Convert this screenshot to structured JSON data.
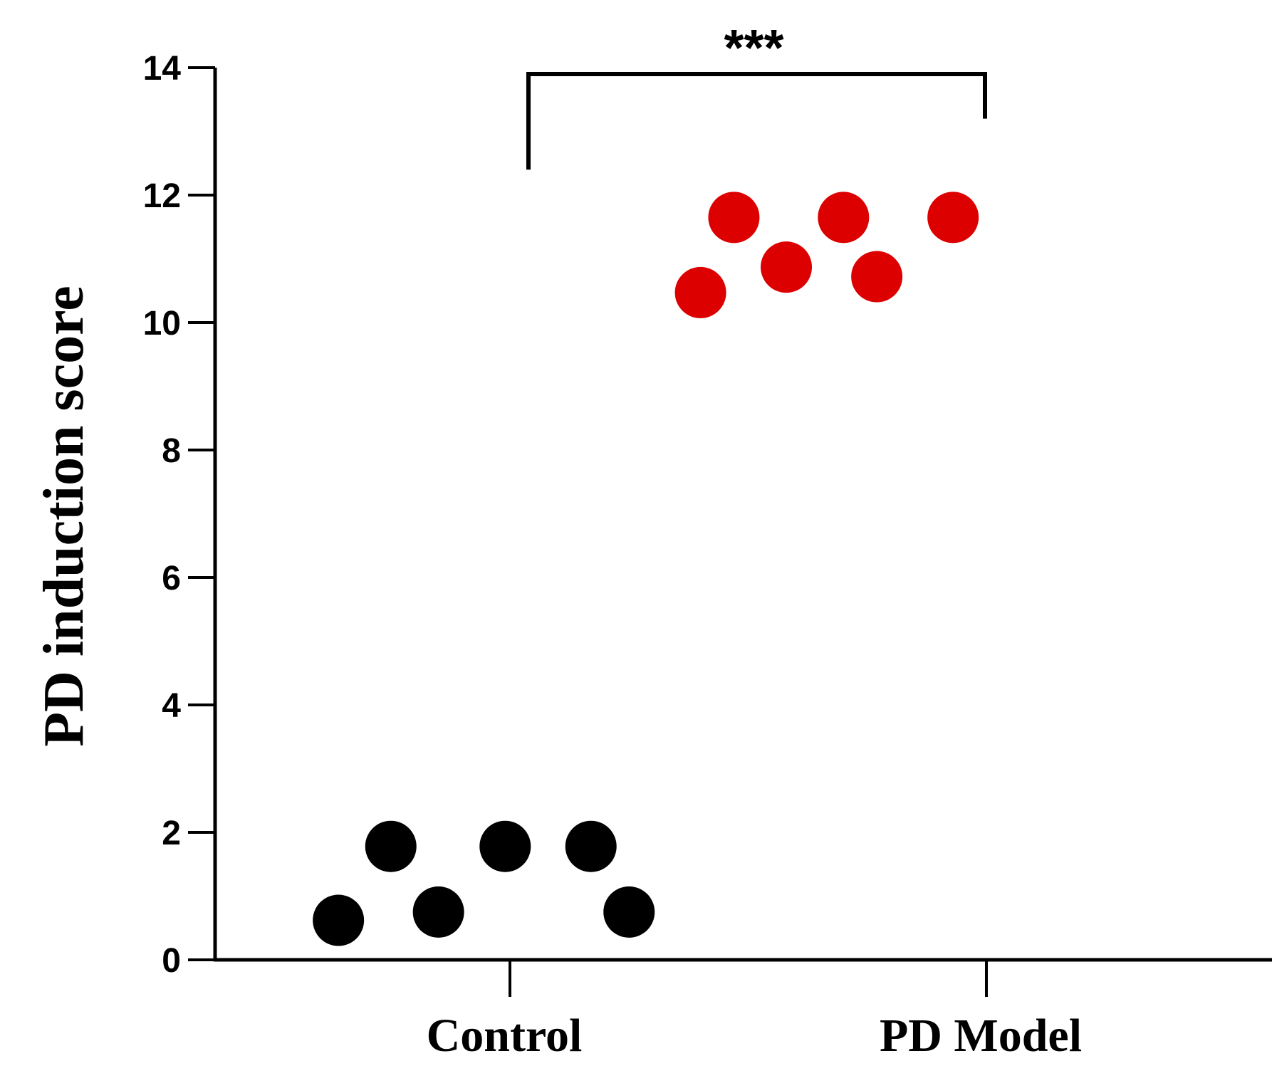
{
  "chart_data": {
    "type": "scatter",
    "ylabel": "PD induction score",
    "xlabel": "",
    "ylim": [
      0,
      14
    ],
    "yticks": [
      0,
      2,
      4,
      6,
      8,
      10,
      12,
      14
    ],
    "categories": [
      "Control",
      "PD Model"
    ],
    "grid": false,
    "legend": "none",
    "series": [
      {
        "category": "Control",
        "color": "#000000",
        "points": [
          {
            "offset": -0.36,
            "y": 0.62
          },
          {
            "offset": -0.25,
            "y": 1.78
          },
          {
            "offset": -0.15,
            "y": 0.75
          },
          {
            "offset": -0.01,
            "y": 1.78
          },
          {
            "offset": 0.17,
            "y": 1.78
          },
          {
            "offset": 0.25,
            "y": 0.75
          }
        ]
      },
      {
        "category": "PD Model",
        "color": "#dd0000",
        "points": [
          {
            "offset": -0.6,
            "y": 10.47
          },
          {
            "offset": -0.53,
            "y": 11.65
          },
          {
            "offset": -0.42,
            "y": 10.87
          },
          {
            "offset": -0.3,
            "y": 11.65
          },
          {
            "offset": -0.23,
            "y": 10.72
          },
          {
            "offset": -0.07,
            "y": 11.65
          }
        ]
      }
    ],
    "annotations": [
      {
        "text": "***",
        "type": "significance-bracket",
        "from": "Control",
        "to": "PD Model",
        "y": 13.9,
        "left_end": 12.4,
        "right_end": 13.2
      }
    ]
  }
}
